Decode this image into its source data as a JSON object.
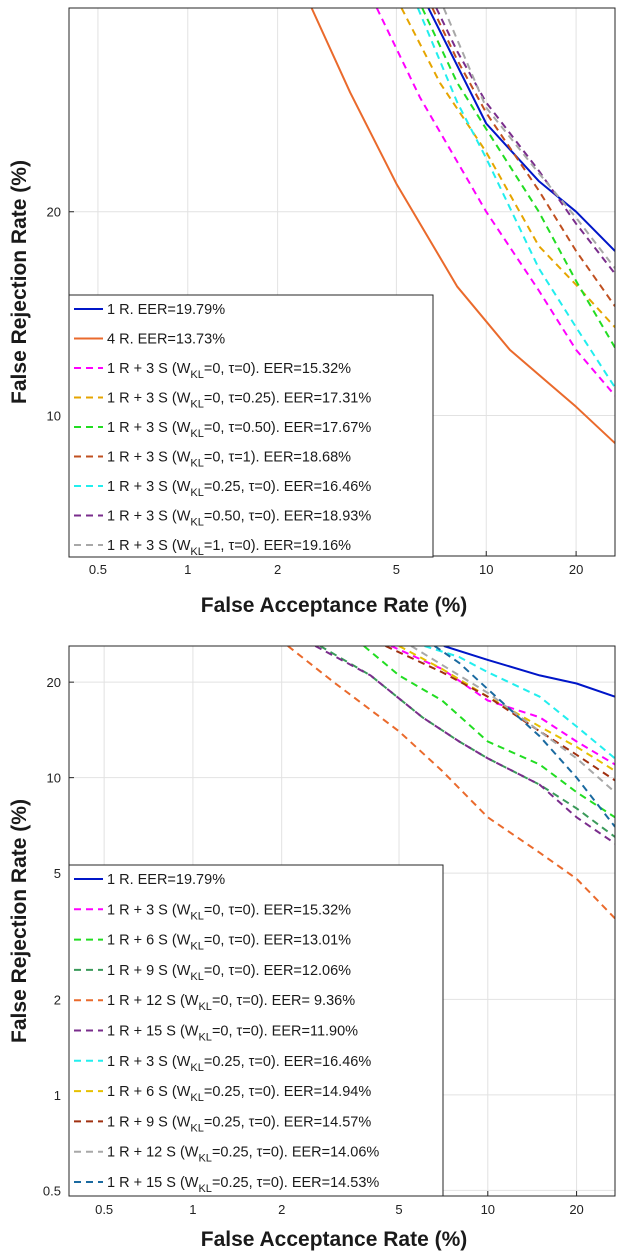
{
  "chart_data": [
    {
      "type": "line",
      "scale": "log-log",
      "xlabel": "False Acceptance Rate (%)",
      "ylabel": "False Rejection Rate (%)",
      "xlim": [
        0.4,
        27
      ],
      "ylim": [
        6.2,
        40
      ],
      "x_ticks": [
        0.5,
        1,
        2,
        5,
        10,
        20
      ],
      "x_tick_labels": [
        "0.5",
        "1",
        "2",
        "5",
        "10",
        "20"
      ],
      "y_ticks": [
        10,
        20
      ],
      "y_tick_labels": [
        "10",
        "20"
      ],
      "legend_position": "lower-left",
      "series": [
        {
          "name": "1 R. EER=19.79%",
          "label_main": "1 R. EER=19.79%",
          "label_sub": "",
          "label_rest": "",
          "color": "#0016c8",
          "dash": "solid",
          "x": [
            6.4,
            10,
            15,
            20,
            27
          ],
          "y": [
            40,
            27,
            22.2,
            20,
            17.5
          ]
        },
        {
          "name": "4 R. EER=13.73%",
          "label_main": "4 R. EER=13.73%",
          "label_sub": "",
          "label_rest": "",
          "color": "#ea6a2c",
          "dash": "solid",
          "x": [
            2.6,
            3.5,
            5,
            8,
            12,
            20,
            27
          ],
          "y": [
            40,
            30,
            22,
            15.5,
            12.5,
            10.3,
            9.1
          ]
        },
        {
          "name": "1 R + 3 S (W_KL=0, τ=0). EER=15.32%",
          "label_main": "1 R + 3 S (W",
          "label_sub": "KL",
          "label_rest": "=0, τ=0). EER=15.32%",
          "color": "#ff00ff",
          "dash": "dashed",
          "x": [
            4.3,
            6,
            10,
            15,
            20,
            27
          ],
          "y": [
            40,
            29.5,
            20,
            15.3,
            12.5,
            10.7
          ]
        },
        {
          "name": "1 R + 3 S (W_KL=0, τ=0.25). EER=17.31%",
          "label_main": "1 R + 3 S (W",
          "label_sub": "KL",
          "label_rest": "=0, τ=0.25). EER=17.31%",
          "color": "#e6a500",
          "dash": "dashed",
          "x": [
            5.2,
            7,
            10,
            15,
            20,
            27
          ],
          "y": [
            40,
            31,
            24.5,
            17.8,
            15.6,
            13.5
          ]
        },
        {
          "name": "1 R + 3 S (W_KL=0, τ=0.50). EER=17.67%",
          "label_main": "1 R + 3 S (W",
          "label_sub": "KL",
          "label_rest": "=0, τ=0.50). EER=17.67%",
          "color": "#22dd22",
          "dash": "dashed",
          "x": [
            6.1,
            8,
            10,
            15,
            20,
            27
          ],
          "y": [
            40,
            31,
            26.5,
            20,
            15.8,
            12.6
          ]
        },
        {
          "name": "1 R + 3 S (W_KL=0, τ=1). EER=18.68%",
          "label_main": "1 R + 3 S (W",
          "label_sub": "KL",
          "label_rest": "=0, τ=1). EER=18.68%",
          "color": "#c05020",
          "dash": "dashed",
          "x": [
            6.6,
            8,
            10,
            15,
            20,
            27
          ],
          "y": [
            40,
            33.5,
            28,
            21.5,
            17.5,
            14.5
          ]
        },
        {
          "name": "1 R + 3 S (W_KL=0.25, τ=0). EER=16.46%",
          "label_main": "1 R + 3 S (W",
          "label_sub": "KL",
          "label_rest": "=0.25, τ=0). EER=16.46%",
          "color": "#22eeee",
          "dash": "dashed",
          "x": [
            5.9,
            8,
            10,
            15,
            20,
            27
          ],
          "y": [
            40,
            29,
            24,
            16.5,
            13.5,
            11
          ]
        },
        {
          "name": "1 R + 3 S (W_KL=0.50, τ=0). EER=18.93%",
          "label_main": "1 R + 3 S (W",
          "label_sub": "KL",
          "label_rest": "=0.50, τ=0). EER=18.93%",
          "color": "#7a2d8c",
          "dash": "dashed",
          "x": [
            6.8,
            8,
            10,
            15,
            20,
            27
          ],
          "y": [
            40,
            34.5,
            29,
            23,
            19.2,
            16.2
          ]
        },
        {
          "name": "1 R + 3 S (W_KL=1, τ=0). EER=19.16%",
          "label_main": "1 R + 3 S (W",
          "label_sub": "KL",
          "label_rest": "=1, τ=0). EER=19.16%",
          "color": "#a8a8a8",
          "dash": "dashed",
          "x": [
            7.2,
            10,
            15,
            20,
            27
          ],
          "y": [
            40,
            28.5,
            22.8,
            19.6,
            16.5
          ]
        }
      ]
    },
    {
      "type": "line",
      "scale": "log-log",
      "xlabel": "False Acceptance Rate (%)",
      "ylabel": "False Rejection Rate (%)",
      "xlim": [
        0.38,
        27
      ],
      "ylim": [
        0.48,
        26
      ],
      "x_ticks": [
        0.5,
        1,
        2,
        5,
        10,
        20
      ],
      "x_tick_labels": [
        "0.5",
        "1",
        "2",
        "5",
        "10",
        "20"
      ],
      "y_ticks": [
        0.5,
        1,
        2,
        5,
        10,
        20
      ],
      "y_tick_labels": [
        "0.5",
        "1",
        "2",
        "5",
        "10",
        "20"
      ],
      "legend_position": "lower-left",
      "series": [
        {
          "name": "1 R. EER=19.79%",
          "label_main": "1 R. EER=19.79%",
          "label_sub": "",
          "label_rest": "",
          "color": "#0016c8",
          "dash": "solid",
          "x": [
            7.1,
            10,
            15,
            20,
            27
          ],
          "y": [
            26,
            23.5,
            21,
            19.8,
            18
          ]
        },
        {
          "name": "1 R + 3 S (W_KL=0, τ=0). EER=15.32%",
          "label_main": "1 R + 3 S (W",
          "label_sub": "",
          "label_rest": "",
          "label_sub2": "KL",
          "label_rest2": "=0, τ=0). EER=15.32%",
          "color": "#ff00ff",
          "dash": "dashed",
          "x": [
            4.7,
            7,
            10,
            15,
            20,
            27
          ],
          "y": [
            26,
            22,
            17.5,
            15.5,
            13,
            11
          ]
        },
        {
          "name": "1 R + 6 S (W_KL=0, τ=0). EER=13.01%",
          "label_main": "1 R + 6 S (W",
          "label_sub2": "KL",
          "label_rest2": "=0, τ=0). EER=13.01%",
          "color": "#22dd22",
          "dash": "dashed",
          "x": [
            3.8,
            5,
            7,
            10,
            15,
            20,
            27
          ],
          "y": [
            26,
            21,
            17.5,
            13,
            11,
            9,
            7.5
          ]
        },
        {
          "name": "1 R + 9 S (W_KL=0, τ=0). EER=12.06%",
          "label_main": "1 R + 9 S (W",
          "label_sub2": "KL",
          "label_rest2": "=0, τ=0). EER=12.06%",
          "color": "#3a9a5a",
          "dash": "dashed",
          "x": [
            2.7,
            4,
            6,
            8,
            10,
            15,
            20,
            27
          ],
          "y": [
            26,
            21,
            15.5,
            13,
            11.5,
            9.5,
            8,
            6.5
          ]
        },
        {
          "name": "1 R + 12 S (W_KL=0, τ=0). EER= 9.36%",
          "label_main": "1 R + 12 S (W",
          "label_sub2": "KL",
          "label_rest2": "=0, τ=0). EER= 9.36%",
          "color": "#ea6a2c",
          "dash": "dashed",
          "x": [
            2.1,
            3,
            5,
            7,
            10,
            15,
            20,
            27
          ],
          "y": [
            26,
            20,
            14,
            10.5,
            7.5,
            5.8,
            4.8,
            3.6
          ]
        },
        {
          "name": "1 R + 15 S (W_KL=0, τ=0). EER=11.90%",
          "label_main": "1 R + 15 S (W",
          "label_sub2": "KL",
          "label_rest2": "=0, τ=0). EER=11.90%",
          "color": "#7a2d8c",
          "dash": "dashed",
          "x": [
            2.6,
            4,
            6,
            8,
            10,
            15,
            20,
            27
          ],
          "y": [
            26,
            21,
            15.5,
            13,
            11.5,
            9.5,
            7.5,
            6.2
          ]
        },
        {
          "name": "1 R + 3 S (W_KL=0.25, τ=0). EER=16.46%",
          "label_main": "1 R + 3 S (W",
          "label_sub2": "KL",
          "label_rest2": "=0.25, τ=0). EER=16.46%",
          "color": "#22eeee",
          "dash": "dashed",
          "x": [
            6.1,
            8,
            10,
            15,
            20,
            27
          ],
          "y": [
            26,
            24,
            21.5,
            18,
            14.5,
            11.5
          ]
        },
        {
          "name": "1 R + 6 S (W_KL=0.25, τ=0). EER=14.94%",
          "label_main": "1 R + 6 S (W",
          "label_sub2": "KL",
          "label_rest2": "=0.25, τ=0). EER=14.94%",
          "color": "#e6c000",
          "dash": "dashed",
          "x": [
            5,
            7,
            10,
            15,
            20,
            27
          ],
          "y": [
            26,
            22,
            18,
            14.5,
            12.5,
            10.5
          ]
        },
        {
          "name": "1 R + 9 S (W_KL=0.25, τ=0). EER=14.57%",
          "label_main": "1 R + 9 S (W",
          "label_sub2": "KL",
          "label_rest2": "=0.25, τ=0). EER=14.57%",
          "color": "#a03010",
          "dash": "dashed",
          "x": [
            4.5,
            7,
            10,
            15,
            20,
            27
          ],
          "y": [
            26,
            21.5,
            18,
            14,
            11.8,
            9.8
          ]
        },
        {
          "name": "1 R + 12 S (W_KL=0.25, τ=0). EER=14.06%",
          "label_main": "1 R + 12 S (W",
          "label_sub2": "KL",
          "label_rest2": "=0.25, τ=0). EER=14.06%",
          "color": "#a8a8a8",
          "dash": "dashed",
          "x": [
            5.5,
            8,
            10,
            15,
            20,
            27
          ],
          "y": [
            26,
            21,
            18.5,
            14,
            11.5,
            9
          ]
        },
        {
          "name": "1 R + 15 S (W_KL=0.25, τ=0). EER=14.53%",
          "label_main": "1 R + 15 S (W",
          "label_sub2": "KL",
          "label_rest2": "=0.25, τ=0). EER=14.53%",
          "color": "#1a6aa0",
          "dash": "dashed",
          "x": [
            6.6,
            8,
            10,
            15,
            20,
            27
          ],
          "y": [
            26,
            23,
            19,
            13.5,
            10,
            7
          ]
        }
      ]
    }
  ]
}
